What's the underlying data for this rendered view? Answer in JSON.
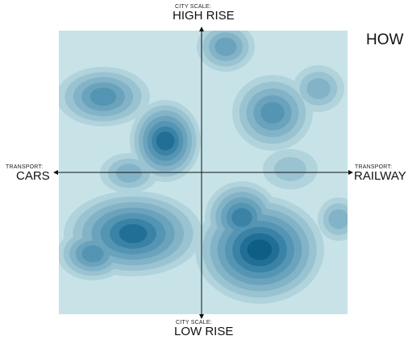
{
  "title": "HOW",
  "axes": {
    "top": {
      "caption": "CITY SCALE:",
      "label": "HIGH RISE"
    },
    "bottom": {
      "caption": "CITY SCALE:",
      "label": "LOW RISE"
    },
    "left": {
      "caption": "TRANSPORT:",
      "label": "CARS"
    },
    "right": {
      "caption": "TRANSPORT:",
      "label": "RAILWAY"
    }
  },
  "colors": {
    "background": "#c7e3e8",
    "levels": [
      "#b1d3dc",
      "#9ac3d2",
      "#83b3c7",
      "#6ba3bd",
      "#5495b3",
      "#3a83a6",
      "#216f96",
      "#0e5e86"
    ],
    "axis": "#111111"
  }
}
